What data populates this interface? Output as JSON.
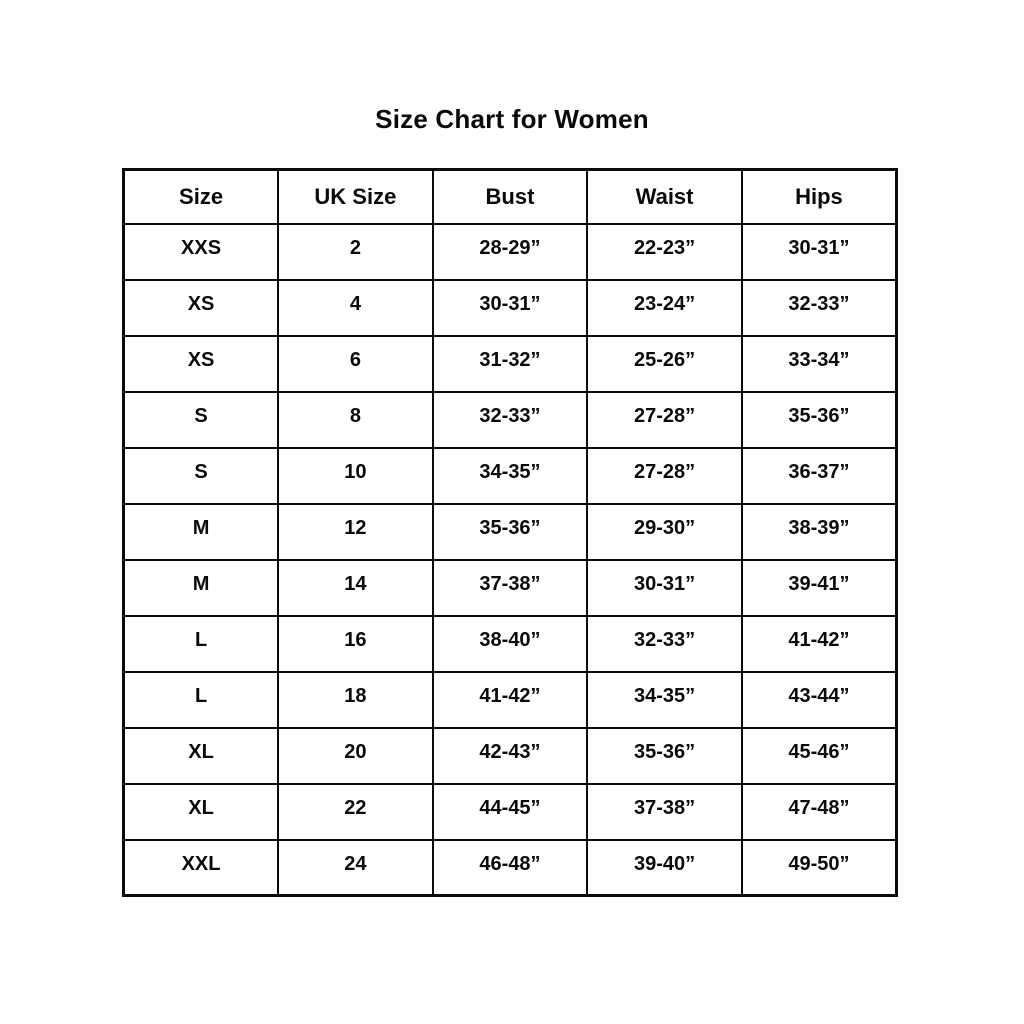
{
  "page": {
    "title": "Size Chart for Women"
  },
  "chart_data": {
    "type": "table",
    "title": "Size Chart for Women",
    "columns": [
      "Size",
      "UK Size",
      "Bust",
      "Waist",
      "Hips"
    ],
    "rows": [
      [
        "XXS",
        "2",
        "28-29”",
        "22-23”",
        "30-31”"
      ],
      [
        "XS",
        "4",
        "30-31”",
        "23-24”",
        "32-33”"
      ],
      [
        "XS",
        "6",
        "31-32”",
        "25-26”",
        "33-34”"
      ],
      [
        "S",
        "8",
        "32-33”",
        "27-28”",
        "35-36”"
      ],
      [
        "S",
        "10",
        "34-35”",
        "27-28”",
        "36-37”"
      ],
      [
        "M",
        "12",
        "35-36”",
        "29-30”",
        "38-39”"
      ],
      [
        "M",
        "14",
        "37-38”",
        "30-31”",
        "39-41”"
      ],
      [
        "L",
        "16",
        "38-40”",
        "32-33”",
        "41-42”"
      ],
      [
        "L",
        "18",
        "41-42”",
        "34-35”",
        "43-44”"
      ],
      [
        "XL",
        "20",
        "42-43”",
        "35-36”",
        "45-46”"
      ],
      [
        "XL",
        "22",
        "44-45”",
        "37-38”",
        "47-48”"
      ],
      [
        "XXL",
        "24",
        "46-48”",
        "39-40”",
        "49-50”"
      ]
    ],
    "layout": {
      "text_color": "#0a0a0a",
      "background_color": "#ffffff",
      "border_color": "#0a0a0a",
      "grid": "on"
    }
  }
}
